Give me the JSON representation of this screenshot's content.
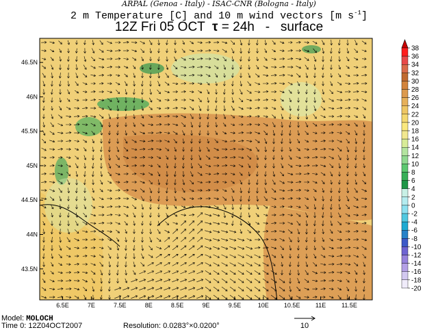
{
  "header": {
    "institutions": "ARPAL (Genoa - Italy)  -  ISAC-CNR (Bologna - Italy)",
    "field_title": "2 m Temperature [C] and 10 m wind vectors [m s",
    "field_unit_exp": "-1",
    "field_close": "]",
    "run_time": "12Z Fri 05 OCT",
    "tau_symbol": "τ",
    "tau_text": "= 24h",
    "sep": "-",
    "level": "surface"
  },
  "map": {
    "lon_labels": [
      "6.5E",
      "7E",
      "7.5E",
      "8E",
      "8.5E",
      "9E",
      "9.5E",
      "10E",
      "10.5E",
      "11E",
      "11.5E"
    ],
    "lat_labels": [
      "46.5N",
      "46N",
      "45.5N",
      "45N",
      "44.5N",
      "44N",
      "43.5N"
    ],
    "lon_range": [
      6.1,
      11.9
    ],
    "lat_range": [
      43.05,
      46.85
    ]
  },
  "colorbar": {
    "labels": [
      "38",
      "36",
      "34",
      "32",
      "30",
      "28",
      "26",
      "24",
      "22",
      "20",
      "18",
      "16",
      "14",
      "12",
      "10",
      "8",
      "6",
      "4",
      "2",
      "0",
      "-2",
      "-4",
      "-6",
      "-8",
      "-10",
      "-12",
      "-14",
      "-16",
      "-18",
      "-20"
    ],
    "colors": [
      "#c80000",
      "#ff1e1e",
      "#e84a4a",
      "#d96b4a",
      "#c06a30",
      "#d2843c",
      "#dc9a4e",
      "#e6b05a",
      "#eec664",
      "#f4d870",
      "#fae87e",
      "#f2e890",
      "#d8ec98",
      "#b4e4a0",
      "#90d890",
      "#5cc870",
      "#38b058",
      "#1e9646",
      "#c8f0e6",
      "#b4ecf0",
      "#8ce0f0",
      "#50c8e0",
      "#1eaad2",
      "#2882c8",
      "#3c5ac8",
      "#6e64d2",
      "#9682dc",
      "#b4a0e6",
      "#d2c8f0",
      "#f0ecfa"
    ]
  },
  "footer": {
    "model_label": "Model:",
    "model_value": "MOLOCH",
    "time_label": "Time 0:",
    "time_value": "12Z04OCT2007",
    "res_label": "Resolution:",
    "res_value": "0.0283°×0.0200°",
    "ref_vector": "10"
  }
}
